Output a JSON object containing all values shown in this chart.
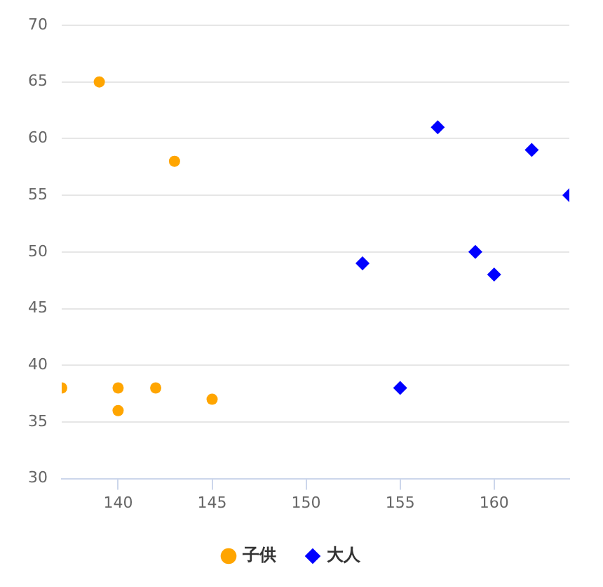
{
  "chart_data": {
    "type": "scatter",
    "xlim": [
      137,
      164
    ],
    "xticks": [
      140,
      145,
      150,
      155,
      160
    ],
    "ylim": [
      30,
      70
    ],
    "yticks": [
      30,
      35,
      40,
      45,
      50,
      55,
      60,
      65,
      70
    ],
    "grid": "y",
    "legend": "bottom",
    "series": [
      {
        "name": "子供",
        "color": "#ffa500",
        "marker": "circle",
        "x": [
          137,
          139,
          140,
          140,
          142,
          143,
          145
        ],
        "values": [
          38,
          65,
          38,
          36,
          38,
          58,
          37
        ]
      },
      {
        "name": "大人",
        "color": "#0000ff",
        "marker": "diamond",
        "x": [
          153,
          155,
          157,
          159,
          160,
          162,
          164
        ],
        "values": [
          49,
          38,
          61,
          50,
          48,
          59,
          55
        ]
      }
    ]
  }
}
